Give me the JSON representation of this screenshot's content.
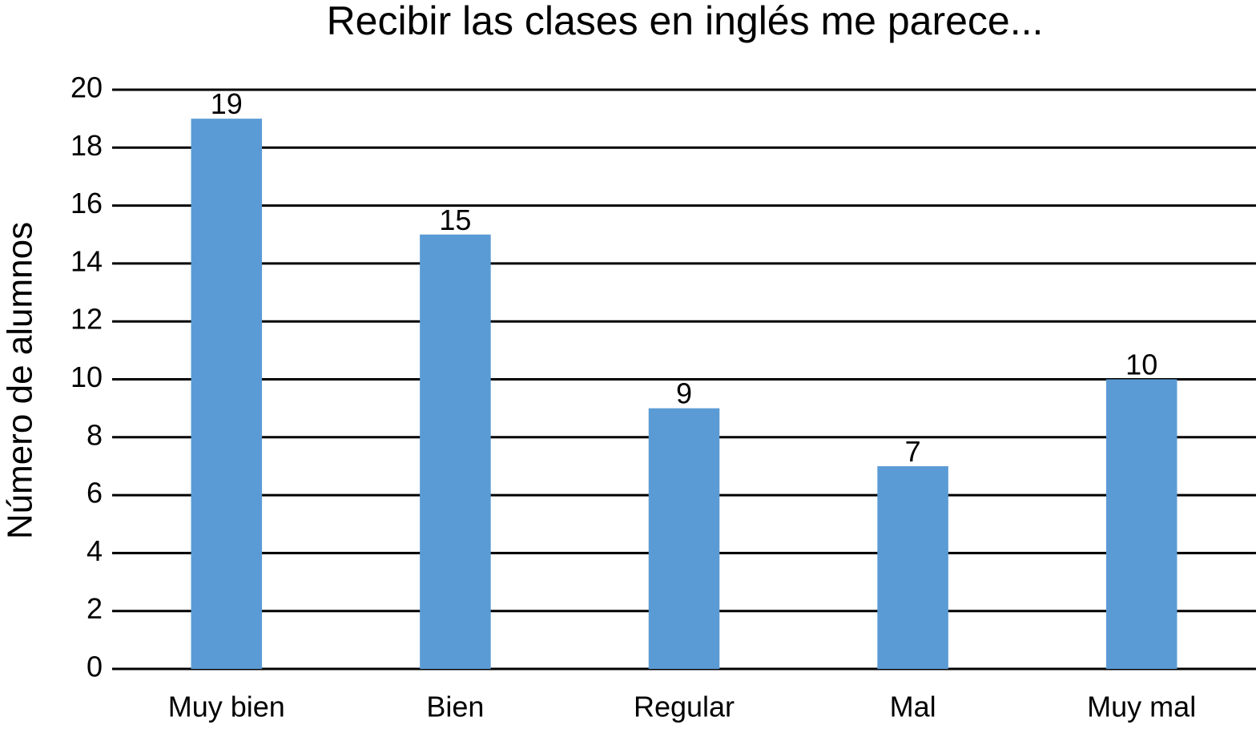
{
  "chart_data": {
    "type": "bar",
    "title": "Recibir las clases en inglés me parece...",
    "y_label": "Número de alumnos",
    "categories": [
      "Muy bien",
      "Bien",
      "Regular",
      "Mal",
      "Muy mal"
    ],
    "values": [
      19,
      15,
      9,
      7,
      10
    ],
    "color": "#5b9bd5",
    "ylim": [
      0,
      20
    ],
    "yticks": [
      0,
      2,
      4,
      6,
      8,
      10,
      12,
      14,
      16,
      18,
      20
    ],
    "grid": true
  }
}
